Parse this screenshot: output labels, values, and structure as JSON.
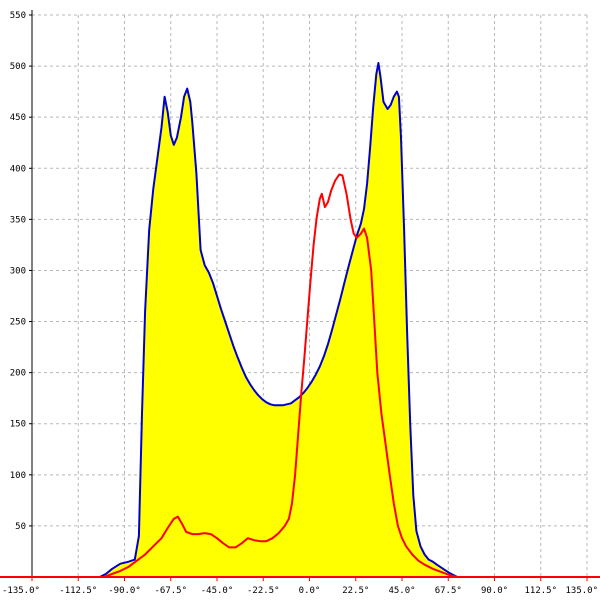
{
  "chart_data": {
    "type": "area",
    "xlim": [
      -135,
      135
    ],
    "ylim": [
      0,
      550
    ],
    "grid": true,
    "legend": "none",
    "x_ticks": [
      {
        "value": -135,
        "label": "-135.0°"
      },
      {
        "value": -112.5,
        "label": "-112.5°"
      },
      {
        "value": -90,
        "label": "-90.0°"
      },
      {
        "value": -67.5,
        "label": "-67.5°"
      },
      {
        "value": -45,
        "label": "-45.0°"
      },
      {
        "value": -22.5,
        "label": "-22.5°"
      },
      {
        "value": 0,
        "label": "0.0°"
      },
      {
        "value": 22.5,
        "label": "22.5°"
      },
      {
        "value": 45,
        "label": "45.0°"
      },
      {
        "value": 67.5,
        "label": "67.5°"
      },
      {
        "value": 90,
        "label": "90.0°"
      },
      {
        "value": 112.5,
        "label": "112.5°"
      },
      {
        "value": 135,
        "label": "135.0°"
      }
    ],
    "y_ticks": [
      {
        "value": 50,
        "label": "50"
      },
      {
        "value": 100,
        "label": "100"
      },
      {
        "value": 150,
        "label": "150"
      },
      {
        "value": 200,
        "label": "200"
      },
      {
        "value": 250,
        "label": "250"
      },
      {
        "value": 300,
        "label": "300"
      },
      {
        "value": 350,
        "label": "350"
      },
      {
        "value": 400,
        "label": "400"
      },
      {
        "value": 450,
        "label": "450"
      },
      {
        "value": 500,
        "label": "500"
      },
      {
        "value": 550,
        "label": "550"
      }
    ],
    "series": [
      {
        "color": "#0000cc",
        "fill": "#ffff00",
        "points": [
          [
            -135,
            0
          ],
          [
            -102,
            0
          ],
          [
            -99,
            3
          ],
          [
            -96,
            8
          ],
          [
            -92,
            13
          ],
          [
            -88,
            15
          ],
          [
            -85,
            17
          ],
          [
            -83,
            40
          ],
          [
            -81.5,
            160
          ],
          [
            -80,
            260
          ],
          [
            -78,
            340
          ],
          [
            -76,
            380
          ],
          [
            -74,
            410
          ],
          [
            -72,
            440
          ],
          [
            -70.5,
            470
          ],
          [
            -69,
            455
          ],
          [
            -67.5,
            432
          ],
          [
            -66,
            423
          ],
          [
            -64.5,
            430
          ],
          [
            -62.5,
            450
          ],
          [
            -61,
            470
          ],
          [
            -59.5,
            478
          ],
          [
            -58,
            465
          ],
          [
            -57,
            445
          ],
          [
            -55,
            395
          ],
          [
            -53,
            320
          ],
          [
            -51,
            305
          ],
          [
            -49,
            298
          ],
          [
            -47,
            288
          ],
          [
            -45,
            275
          ],
          [
            -43,
            262
          ],
          [
            -41,
            250
          ],
          [
            -39,
            238
          ],
          [
            -37,
            226
          ],
          [
            -35,
            215
          ],
          [
            -33,
            205
          ],
          [
            -31,
            196
          ],
          [
            -29,
            189
          ],
          [
            -27,
            183
          ],
          [
            -25,
            178
          ],
          [
            -23,
            174
          ],
          [
            -21,
            171
          ],
          [
            -19,
            169
          ],
          [
            -17,
            168
          ],
          [
            -15,
            168
          ],
          [
            -13,
            168
          ],
          [
            -11,
            169
          ],
          [
            -9,
            170
          ],
          [
            -7,
            173
          ],
          [
            -5,
            176
          ],
          [
            -3,
            180
          ],
          [
            -1,
            185
          ],
          [
            1,
            191
          ],
          [
            3,
            198
          ],
          [
            5,
            206
          ],
          [
            7,
            216
          ],
          [
            9,
            228
          ],
          [
            11,
            242
          ],
          [
            13,
            257
          ],
          [
            15,
            272
          ],
          [
            17,
            288
          ],
          [
            19,
            304
          ],
          [
            21,
            319
          ],
          [
            23,
            334
          ],
          [
            25,
            346
          ],
          [
            26.5,
            360
          ],
          [
            28,
            385
          ],
          [
            29.5,
            420
          ],
          [
            31,
            460
          ],
          [
            32.5,
            492
          ],
          [
            33.5,
            503
          ],
          [
            34.5,
            490
          ],
          [
            36,
            465
          ],
          [
            38,
            458
          ],
          [
            39.5,
            462
          ],
          [
            41,
            470
          ],
          [
            42.5,
            475
          ],
          [
            43.5,
            470
          ],
          [
            44.5,
            430
          ],
          [
            46,
            340
          ],
          [
            47.5,
            240
          ],
          [
            49,
            150
          ],
          [
            50.5,
            80
          ],
          [
            52,
            45
          ],
          [
            54,
            30
          ],
          [
            56,
            22
          ],
          [
            58,
            17
          ],
          [
            60,
            15
          ],
          [
            62,
            12
          ],
          [
            65,
            8
          ],
          [
            68,
            4
          ],
          [
            70,
            2
          ],
          [
            72,
            0
          ],
          [
            135,
            0
          ]
        ]
      },
      {
        "color": "#ff0000",
        "fill": "none",
        "points": [
          [
            -135,
            0
          ],
          [
            -100,
            0
          ],
          [
            -96,
            3
          ],
          [
            -92,
            6
          ],
          [
            -88,
            10
          ],
          [
            -84,
            16
          ],
          [
            -80,
            22
          ],
          [
            -76,
            30
          ],
          [
            -72,
            38
          ],
          [
            -69,
            48
          ],
          [
            -66,
            57
          ],
          [
            -64,
            59
          ],
          [
            -62,
            52
          ],
          [
            -60,
            44
          ],
          [
            -57,
            42
          ],
          [
            -54,
            42
          ],
          [
            -51,
            43
          ],
          [
            -48,
            42
          ],
          [
            -45,
            38
          ],
          [
            -42,
            33
          ],
          [
            -39,
            29
          ],
          [
            -36,
            29
          ],
          [
            -33,
            33
          ],
          [
            -30,
            38
          ],
          [
            -27,
            36
          ],
          [
            -24,
            35
          ],
          [
            -21,
            35
          ],
          [
            -18,
            38
          ],
          [
            -15,
            43
          ],
          [
            -12,
            50
          ],
          [
            -10,
            57
          ],
          [
            -8.5,
            72
          ],
          [
            -7,
            100
          ],
          [
            -5.5,
            140
          ],
          [
            -4,
            180
          ],
          [
            -2.5,
            215
          ],
          [
            -1,
            252
          ],
          [
            0.5,
            290
          ],
          [
            2,
            325
          ],
          [
            3.5,
            352
          ],
          [
            5,
            370
          ],
          [
            6,
            375
          ],
          [
            7.5,
            362
          ],
          [
            9,
            367
          ],
          [
            10.5,
            378
          ],
          [
            12.5,
            388
          ],
          [
            14.5,
            394
          ],
          [
            16,
            393
          ],
          [
            18,
            375
          ],
          [
            20,
            350
          ],
          [
            21.5,
            336
          ],
          [
            23,
            332
          ],
          [
            25,
            336
          ],
          [
            26.5,
            341
          ],
          [
            28,
            332
          ],
          [
            30,
            300
          ],
          [
            31.5,
            250
          ],
          [
            33,
            200
          ],
          [
            35,
            160
          ],
          [
            37,
            130
          ],
          [
            39,
            100
          ],
          [
            41,
            72
          ],
          [
            43,
            50
          ],
          [
            45,
            38
          ],
          [
            47,
            30
          ],
          [
            50,
            22
          ],
          [
            53,
            16
          ],
          [
            56,
            12
          ],
          [
            60,
            8
          ],
          [
            64,
            5
          ],
          [
            68,
            2
          ],
          [
            72,
            0
          ],
          [
            135,
            0
          ]
        ]
      }
    ]
  }
}
